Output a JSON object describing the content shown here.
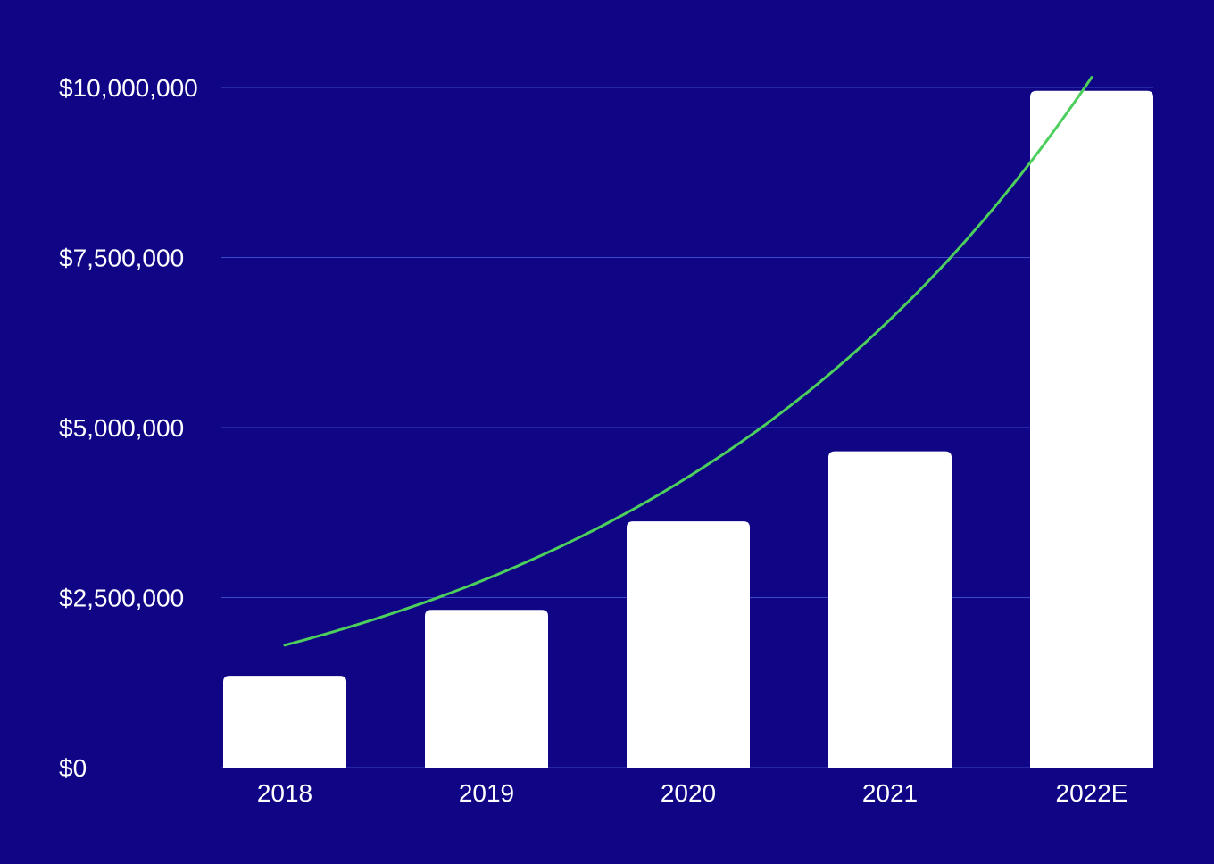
{
  "colors": {
    "background": "#100585",
    "gridline": "#3a48c9",
    "bar": "#ffffff",
    "trendline": "#4ccf5c",
    "text": "#ffffff"
  },
  "chart_data": {
    "type": "bar",
    "title": "",
    "xlabel": "",
    "ylabel": "",
    "categories": [
      "2018",
      "2019",
      "2020",
      "2021",
      "2022E"
    ],
    "values": [
      1350000,
      2320000,
      3620000,
      4650000,
      9950000
    ],
    "ylim": [
      0,
      10000000
    ],
    "y_ticks": [
      0,
      2500000,
      5000000,
      7500000,
      10000000
    ],
    "y_tick_labels": [
      "$0",
      "$2,500,000",
      "$5,000,000",
      "$7,500,000",
      "$10,000,000"
    ],
    "grid": true,
    "legend": "none",
    "trendline": {
      "type": "exponential",
      "start_value": 1800000,
      "end_value": 10150000
    }
  }
}
